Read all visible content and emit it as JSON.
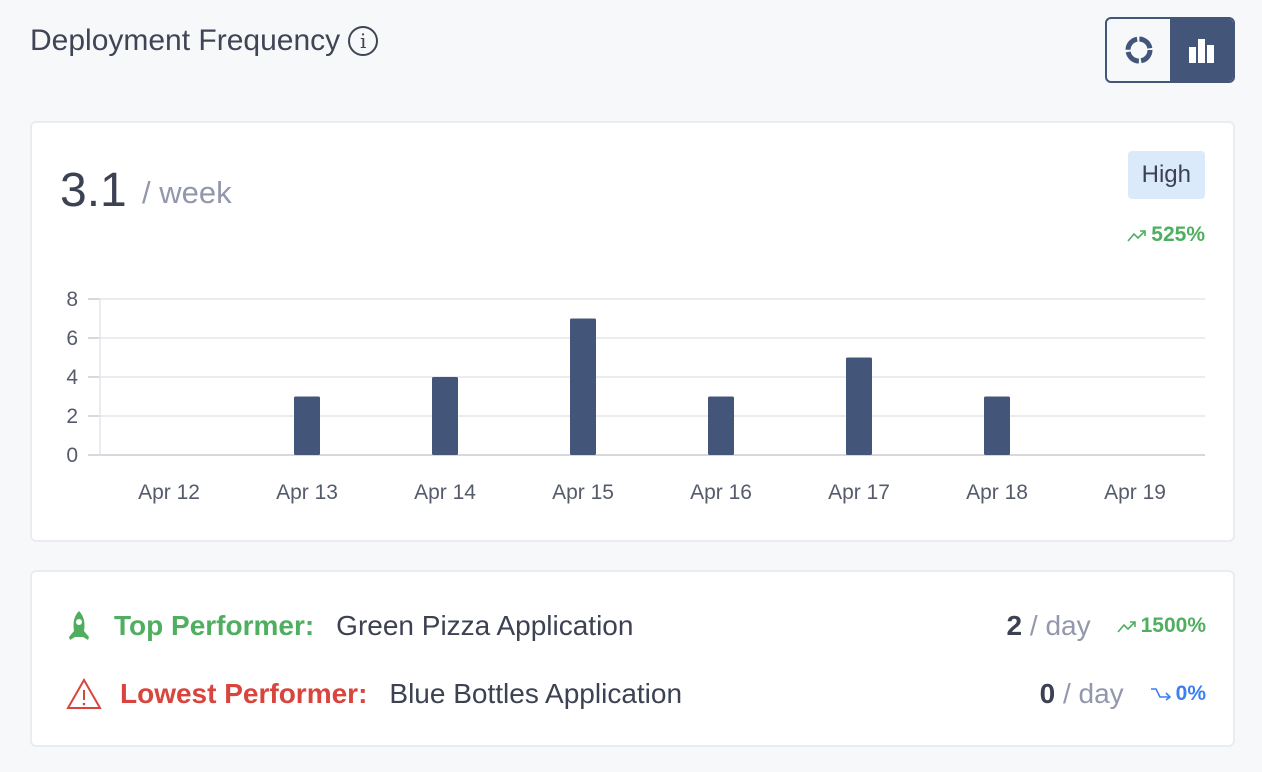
{
  "header": {
    "title": "Deployment Frequency",
    "info_icon": "i"
  },
  "summary": {
    "value": "3.1",
    "unit": "/ week",
    "badge": "High",
    "trend": "525%"
  },
  "chart_data": {
    "type": "bar",
    "categories": [
      "Apr 12",
      "Apr 13",
      "Apr 14",
      "Apr 15",
      "Apr 16",
      "Apr 17",
      "Apr 18",
      "Apr 19"
    ],
    "values": [
      0,
      3,
      4,
      7,
      3,
      5,
      3,
      0
    ],
    "yticks": [
      0,
      2,
      4,
      6,
      8
    ],
    "ylim": [
      0,
      8
    ],
    "grid": true,
    "bar_color": "#44557a"
  },
  "performers": [
    {
      "label": "Top Performer:",
      "name": "Green Pizza Application",
      "value": "2",
      "unit": "/ day",
      "trend": "1500%",
      "color": "#4fae5f"
    },
    {
      "label": "Lowest Performer:",
      "name": "Blue Bottles Application",
      "value": "0",
      "unit": "/ day",
      "trend": "0%",
      "color": "#d9443d",
      "trend_color": "#3d7ff2"
    }
  ]
}
